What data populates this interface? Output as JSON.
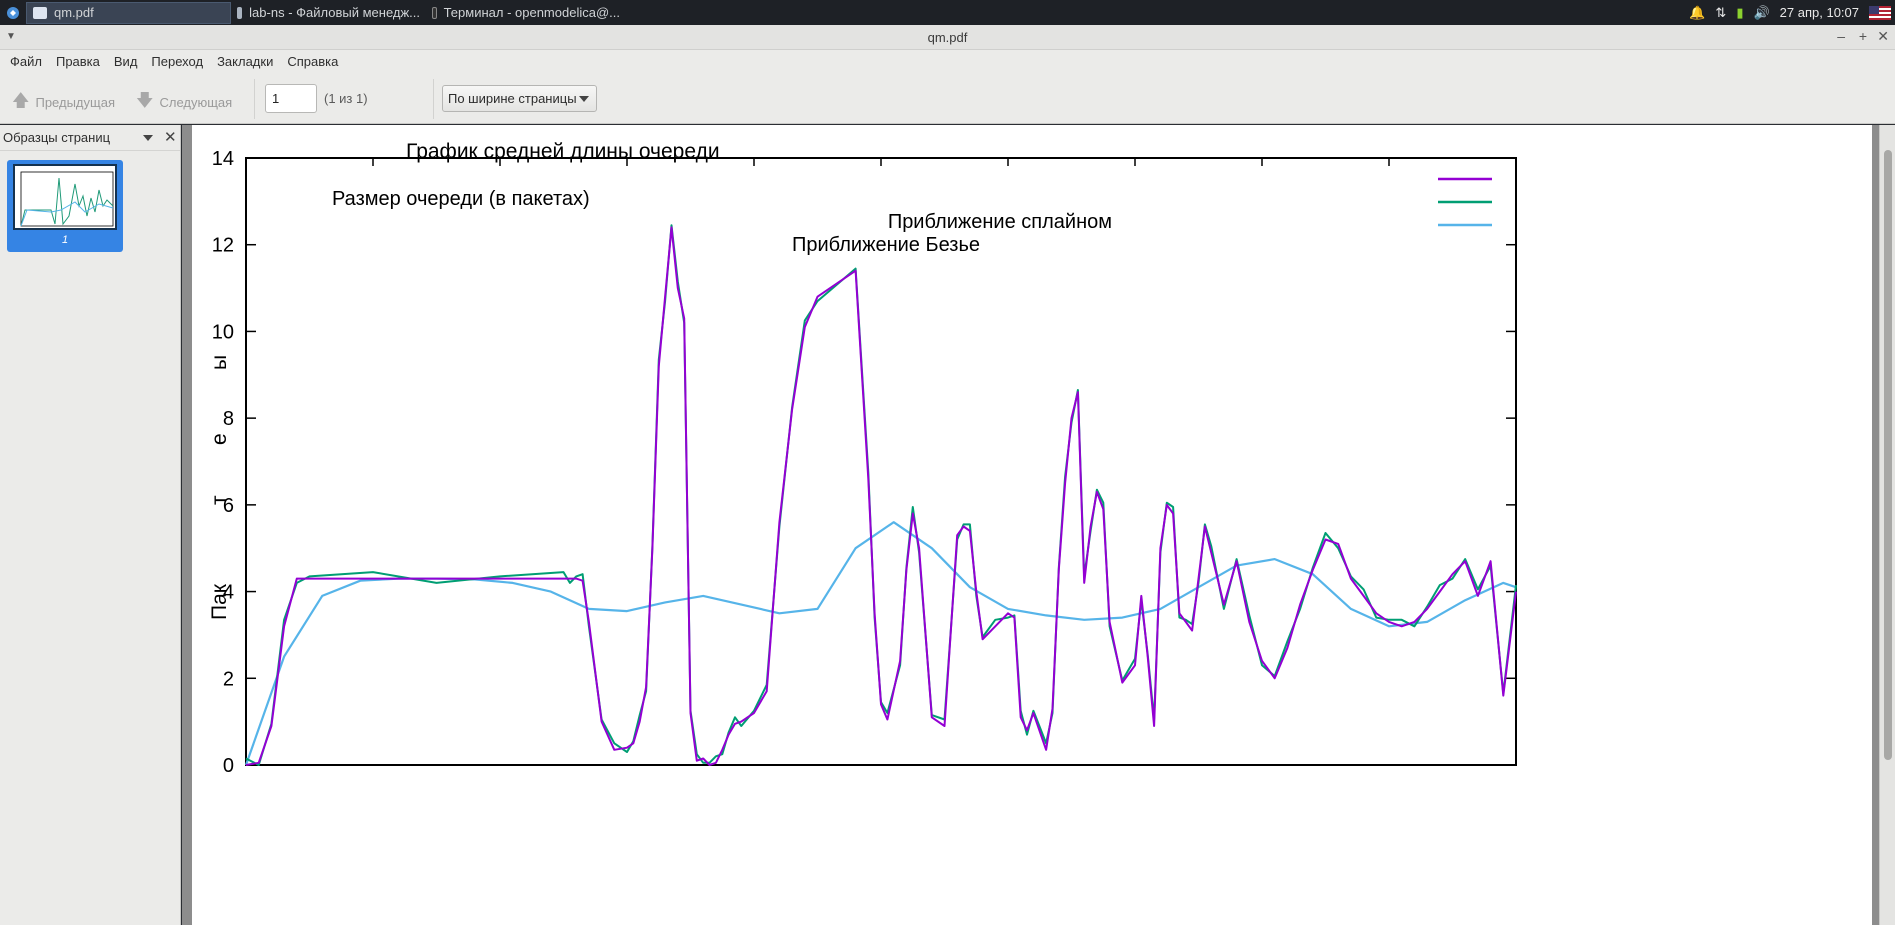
{
  "taskbar": {
    "tasks": [
      {
        "label": "qm.pdf"
      },
      {
        "label": "lab-ns - Файловый менедж..."
      },
      {
        "label": "Терминал - openmodelica@..."
      }
    ],
    "clock": "27 апр, 10:07"
  },
  "window": {
    "title": "qm.pdf"
  },
  "menu": [
    "Файл",
    "Правка",
    "Вид",
    "Переход",
    "Закладки",
    "Справка"
  ],
  "toolbar": {
    "prev_label": "Предыдущая",
    "next_label": "Следующая",
    "page_value": "1",
    "page_of": "(1 из 1)",
    "zoom_label": "По ширине страницы"
  },
  "sidebar": {
    "title": "Образцы страниц",
    "thumb_label": "1"
  },
  "chart_data": {
    "type": "line",
    "title": "График средней длины очереди",
    "ylabel": "Пакеты",
    "ylim": [
      0,
      14
    ],
    "yticks": [
      0,
      2,
      4,
      6,
      8,
      10,
      12,
      14
    ],
    "xlim": [
      0,
      10
    ],
    "grid": false,
    "legend_placement": "top-right",
    "series": [
      {
        "name": "Размер очереди (в пакетах)",
        "color": "#9400d3",
        "x": [
          0,
          0.1,
          0.2,
          0.3,
          0.4,
          0.5,
          1,
          1.5,
          2,
          2.5,
          2.55,
          2.6,
          2.65,
          2.7,
          2.8,
          2.9,
          3,
          3.05,
          3.1,
          3.15,
          3.2,
          3.25,
          3.3,
          3.35,
          3.4,
          3.45,
          3.5,
          3.55,
          3.6,
          3.65,
          3.7,
          3.75,
          3.8,
          3.85,
          3.9,
          4,
          4.1,
          4.2,
          4.3,
          4.4,
          4.5,
          4.8,
          4.9,
          4.95,
          5,
          5.05,
          5.15,
          5.2,
          5.25,
          5.3,
          5.4,
          5.5,
          5.6,
          5.65,
          5.7,
          5.75,
          5.8,
          5.9,
          6,
          6.05,
          6.1,
          6.15,
          6.2,
          6.3,
          6.35,
          6.4,
          6.45,
          6.5,
          6.55,
          6.6,
          6.65,
          6.7,
          6.75,
          6.8,
          6.9,
          7,
          7.05,
          7.1,
          7.15,
          7.2,
          7.25,
          7.3,
          7.35,
          7.4,
          7.45,
          7.5,
          7.55,
          7.6,
          7.7,
          7.8,
          7.9,
          8.0,
          8.1,
          8.2,
          8.3,
          8.4,
          8.5,
          8.6,
          8.7,
          8.8,
          8.9,
          9.0,
          9.1,
          9.2,
          9.3,
          9.4,
          9.5,
          9.6,
          9.7,
          9.8,
          9.9,
          10
        ],
        "y": [
          0,
          0.05,
          0.9,
          3.2,
          4.3,
          4.3,
          4.3,
          4.3,
          4.3,
          4.3,
          4.3,
          4.3,
          4.25,
          3.3,
          1.0,
          0.35,
          0.4,
          0.5,
          1.0,
          1.8,
          5.0,
          9.2,
          10.8,
          12.4,
          11.0,
          10.3,
          1.2,
          0.1,
          0.15,
          0.0,
          0.05,
          0.35,
          0.7,
          0.95,
          1.0,
          1.2,
          1.7,
          5.6,
          8.2,
          10.1,
          10.8,
          11.4,
          6.6,
          3.5,
          1.4,
          1.05,
          2.4,
          4.5,
          5.8,
          5.0,
          1.1,
          0.9,
          5.3,
          5.5,
          5.4,
          4.0,
          2.9,
          3.2,
          3.5,
          3.4,
          1.1,
          0.8,
          1.2,
          0.35,
          1.3,
          4.5,
          6.5,
          8.0,
          8.6,
          4.2,
          5.5,
          6.3,
          5.9,
          3.3,
          1.9,
          2.3,
          3.9,
          2.5,
          0.9,
          5.0,
          6.0,
          5.8,
          3.5,
          3.3,
          3.1,
          4.3,
          5.5,
          4.9,
          3.7,
          4.7,
          3.3,
          2.4,
          2.0,
          2.7,
          3.7,
          4.5,
          5.2,
          5.1,
          4.3,
          3.9,
          3.5,
          3.3,
          3.2,
          3.3,
          3.6,
          4.0,
          4.4,
          4.7,
          3.9,
          4.7,
          1.6,
          4.0
        ],
        "note": "values read approximately from plot"
      },
      {
        "name": "Приближение сплайном",
        "color": "#009e73",
        "values_approx": "closely follows the queue-size series"
      },
      {
        "name": "Приближение Безье",
        "color": "#56b4e9",
        "x": [
          0,
          0.3,
          0.6,
          0.9,
          1.2,
          1.5,
          1.8,
          2.1,
          2.4,
          2.7,
          3.0,
          3.3,
          3.6,
          3.9,
          4.2,
          4.5,
          4.8,
          5.1,
          5.4,
          5.7,
          6.0,
          6.3,
          6.6,
          6.9,
          7.2,
          7.5,
          7.8,
          8.1,
          8.4,
          8.7,
          9.0,
          9.3,
          9.6,
          9.9,
          10
        ],
        "y": [
          0,
          2.5,
          3.9,
          4.25,
          4.3,
          4.3,
          4.28,
          4.2,
          4.0,
          3.6,
          3.55,
          3.75,
          3.9,
          3.7,
          3.5,
          3.6,
          5.0,
          5.6,
          5.0,
          4.1,
          3.6,
          3.45,
          3.35,
          3.4,
          3.6,
          4.1,
          4.6,
          4.75,
          4.4,
          3.6,
          3.2,
          3.3,
          3.8,
          4.2,
          4.1
        ]
      }
    ]
  }
}
